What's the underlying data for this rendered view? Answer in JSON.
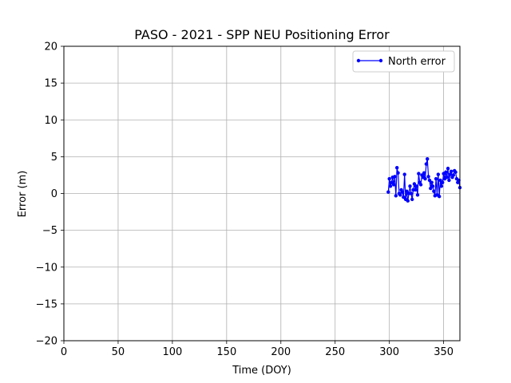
{
  "chart_data": {
    "type": "line",
    "title": "PASO - 2021 - SPP NEU Positioning Error",
    "xlabel": "Time (DOY)",
    "ylabel": "Error (m)",
    "xlim": [
      0,
      365
    ],
    "ylim": [
      -20,
      20
    ],
    "xticks": [
      0,
      50,
      100,
      150,
      200,
      250,
      300,
      350
    ],
    "yticks": [
      -20,
      -15,
      -10,
      -5,
      0,
      5,
      10,
      15,
      20
    ],
    "grid": true,
    "legend_position": "top-right",
    "series": [
      {
        "name": "North error",
        "color": "#0000ff",
        "marker": "circle",
        "x": [
          299,
          300,
          301,
          302,
          303,
          304,
          305,
          306,
          307,
          308,
          309,
          310,
          311,
          312,
          313,
          314,
          315,
          316,
          317,
          318,
          319,
          320,
          321,
          322,
          323,
          324,
          325,
          326,
          327,
          328,
          329,
          330,
          331,
          332,
          333,
          334,
          335,
          336,
          337,
          338,
          339,
          340,
          341,
          342,
          343,
          344,
          345,
          346,
          347,
          348,
          349,
          350,
          351,
          352,
          353,
          354,
          355,
          356,
          357,
          358,
          359,
          360,
          361,
          362,
          363,
          364,
          365
        ],
        "y": [
          0.2,
          2.0,
          1.0,
          1.5,
          2.2,
          1.2,
          2.3,
          -0.3,
          3.5,
          2.8,
          0.0,
          -0.2,
          0.5,
          0.2,
          -0.5,
          2.6,
          -0.8,
          0.3,
          -1.0,
          0.0,
          1.0,
          0.0,
          -0.8,
          0.5,
          1.3,
          0.5,
          1.0,
          -0.2,
          2.7,
          1.5,
          1.2,
          2.5,
          2.2,
          2.8,
          2.0,
          4.0,
          4.7,
          2.3,
          1.8,
          0.7,
          1.5,
          1.0,
          0.3,
          -0.3,
          2.0,
          -0.2,
          2.6,
          -0.4,
          1.8,
          1.0,
          1.5,
          2.7,
          2.0,
          2.9,
          2.2,
          3.4,
          1.8,
          2.6,
          3.0,
          2.2,
          2.5,
          3.1,
          2.9,
          2.0,
          1.5,
          1.8,
          0.8
        ]
      }
    ]
  }
}
